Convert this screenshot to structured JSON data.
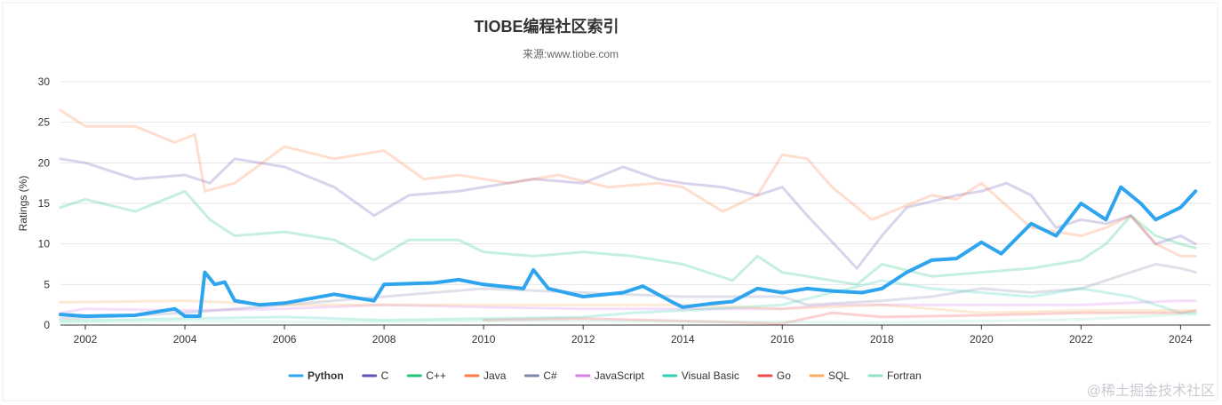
{
  "chart_data": {
    "type": "line",
    "title": "TIOBE编程社区索引",
    "subtitle": "来源:www.tiobe.com",
    "ylabel": "Ratings (%)",
    "xlabel": "",
    "xlim": [
      2001.5,
      2024.6
    ],
    "ylim": [
      0,
      30
    ],
    "yticks": [
      0,
      5,
      10,
      15,
      20,
      25,
      30
    ],
    "xticks": [
      2002,
      2004,
      2006,
      2008,
      2010,
      2012,
      2014,
      2016,
      2018,
      2020,
      2022,
      2024
    ],
    "grid": true,
    "legend_position": "bottom",
    "highlighted_series": "Python",
    "series": [
      {
        "name": "Python",
        "color": "#2fa4ef",
        "highlight": true,
        "x": [
          2001.5,
          2002,
          2003,
          2003.8,
          2004,
          2004.3,
          2004.4,
          2004.6,
          2004.8,
          2005,
          2005.5,
          2006,
          2007,
          2007.8,
          2008,
          2009,
          2009.5,
          2010,
          2010.8,
          2011,
          2011.3,
          2012,
          2012.8,
          2013.2,
          2013.8,
          2014,
          2014.5,
          2015,
          2015.5,
          2016,
          2016.5,
          2017,
          2017.6,
          2018,
          2018.5,
          2019,
          2019.5,
          2020,
          2020.4,
          2021,
          2021.5,
          2022,
          2022.5,
          2022.8,
          2023.2,
          2023.5,
          2024,
          2024.3
        ],
        "y": [
          1.3,
          1.1,
          1.2,
          2.0,
          1.1,
          1.1,
          6.5,
          5.0,
          5.3,
          3.0,
          2.5,
          2.7,
          3.8,
          3.0,
          5.0,
          5.2,
          5.6,
          5.0,
          4.5,
          6.8,
          4.5,
          3.5,
          4.0,
          4.8,
          2.8,
          2.2,
          2.6,
          2.9,
          4.5,
          4.0,
          4.5,
          4.2,
          4.0,
          4.5,
          6.5,
          8.0,
          8.2,
          10.2,
          8.8,
          12.5,
          11.0,
          15.0,
          13.0,
          17.0,
          15.0,
          13.0,
          14.5,
          16.5
        ]
      },
      {
        "name": "C",
        "color": "#6a4fb2",
        "x": [
          2001.5,
          2002,
          2003,
          2004,
          2004.5,
          2005,
          2006,
          2007,
          2007.8,
          2008.5,
          2009.5,
          2010,
          2011,
          2012,
          2012.8,
          2013.5,
          2014,
          2014.8,
          2015.5,
          2016,
          2016.5,
          2017.5,
          2018,
          2018.5,
          2019.5,
          2020,
          2020.5,
          2021,
          2021.5,
          2022,
          2022.5,
          2023,
          2023.5,
          2024,
          2024.3
        ],
        "y": [
          20.5,
          20.0,
          18.0,
          18.5,
          17.5,
          20.5,
          19.5,
          17.0,
          13.5,
          16.0,
          16.5,
          17.0,
          18.0,
          17.5,
          19.5,
          18.0,
          17.5,
          17.0,
          16.0,
          17.0,
          13.5,
          7.0,
          11.0,
          14.5,
          16.0,
          16.5,
          17.5,
          16.0,
          12.0,
          13.0,
          12.5,
          13.5,
          10.0,
          11.0,
          10.0
        ]
      },
      {
        "name": "C++",
        "color": "#1dc47a",
        "x": [
          2001.5,
          2002,
          2003,
          2004,
          2004.5,
          2005,
          2006,
          2007,
          2007.8,
          2008.5,
          2009.5,
          2010,
          2011,
          2012,
          2013,
          2014,
          2015,
          2015.5,
          2016,
          2017,
          2017.5,
          2018,
          2019,
          2020,
          2021,
          2022,
          2022.5,
          2023,
          2023.5,
          2024,
          2024.3
        ],
        "y": [
          14.5,
          15.5,
          14.0,
          16.5,
          13.0,
          11.0,
          11.5,
          10.5,
          8.0,
          10.5,
          10.5,
          9.0,
          8.5,
          9.0,
          8.5,
          7.5,
          5.5,
          8.5,
          6.5,
          5.5,
          5.0,
          7.5,
          6.0,
          6.5,
          7.0,
          8.0,
          10.0,
          13.5,
          11.0,
          10.0,
          9.5
        ]
      },
      {
        "name": "Java",
        "color": "#ff7a45",
        "x": [
          2001.5,
          2002,
          2003,
          2003.8,
          2004.2,
          2004.4,
          2005,
          2006,
          2007,
          2008,
          2008.8,
          2009.5,
          2010.5,
          2011.5,
          2012.5,
          2013.5,
          2014,
          2014.8,
          2015.5,
          2016,
          2016.5,
          2017,
          2017.8,
          2018.2,
          2019,
          2019.5,
          2020,
          2021,
          2021.5,
          2022,
          2022.5,
          2023,
          2023.5,
          2024,
          2024.3
        ],
        "y": [
          26.5,
          24.5,
          24.5,
          22.5,
          23.5,
          16.5,
          17.5,
          22.0,
          20.5,
          21.5,
          18.0,
          18.5,
          17.5,
          18.5,
          17.0,
          17.5,
          17.0,
          14.0,
          16.0,
          21.0,
          20.5,
          17.0,
          13.0,
          14.0,
          16.0,
          15.5,
          17.5,
          12.0,
          11.5,
          11.0,
          12.0,
          13.5,
          10.0,
          8.5,
          8.5
        ]
      },
      {
        "name": "C#",
        "color": "#7b88aa",
        "x": [
          2001.5,
          2002,
          2004,
          2006,
          2008,
          2010,
          2012,
          2014,
          2016,
          2016.5,
          2018,
          2019,
          2020,
          2021,
          2022,
          2023,
          2023.5,
          2024,
          2024.3
        ],
        "y": [
          0.8,
          0.9,
          1.5,
          2.5,
          3.5,
          4.5,
          4.0,
          3.5,
          3.5,
          2.5,
          3.0,
          3.5,
          4.5,
          4.0,
          4.5,
          6.5,
          7.5,
          7.0,
          6.5
        ]
      },
      {
        "name": "JavaScript",
        "color": "#d77ce8",
        "x": [
          2001.5,
          2002,
          2004,
          2006,
          2008,
          2010,
          2012,
          2014,
          2016,
          2017,
          2018,
          2020,
          2022,
          2024,
          2024.3
        ],
        "y": [
          1.5,
          2.0,
          1.8,
          2.0,
          2.5,
          2.2,
          2.0,
          2.0,
          2.0,
          2.5,
          2.5,
          2.5,
          2.5,
          3.0,
          3.0
        ]
      },
      {
        "name": "Visual Basic",
        "color": "#2fd1b2",
        "x": [
          2001.5,
          2004,
          2006,
          2008,
          2010,
          2012,
          2013,
          2014,
          2016,
          2018,
          2019,
          2020,
          2021,
          2022,
          2023,
          2024,
          2024.3
        ],
        "y": [
          0.5,
          0.8,
          1.0,
          0.6,
          0.8,
          1.0,
          1.5,
          1.8,
          2.5,
          5.5,
          4.5,
          4.0,
          3.5,
          4.5,
          3.5,
          1.5,
          1.5
        ]
      },
      {
        "name": "Go",
        "color": "#ef4b4b",
        "x": [
          2010,
          2012,
          2014,
          2016,
          2017,
          2018,
          2020,
          2022,
          2024,
          2024.3
        ],
        "y": [
          0.6,
          0.8,
          0.5,
          0.2,
          1.5,
          1.0,
          1.2,
          1.5,
          1.5,
          1.8
        ]
      },
      {
        "name": "SQL",
        "color": "#f7ae5c",
        "x": [
          2001.5,
          2004,
          2006,
          2008,
          2010,
          2012,
          2014,
          2016,
          2018,
          2020,
          2022,
          2024,
          2024.3
        ],
        "y": [
          2.8,
          3.0,
          2.5,
          2.5,
          2.5,
          2.5,
          2.5,
          2.0,
          2.5,
          1.5,
          1.8,
          1.8,
          1.8
        ]
      },
      {
        "name": "Fortran",
        "color": "#8ee2c8",
        "x": [
          2001.5,
          2004,
          2006,
          2008,
          2010,
          2012,
          2014,
          2016,
          2018,
          2020,
          2022,
          2023,
          2024,
          2024.3
        ],
        "y": [
          0.3,
          0.5,
          0.4,
          0.4,
          0.5,
          0.5,
          0.4,
          0.4,
          0.3,
          0.5,
          0.7,
          1.0,
          1.3,
          1.3
        ]
      }
    ]
  },
  "watermark": "@稀土掘金技术社区"
}
